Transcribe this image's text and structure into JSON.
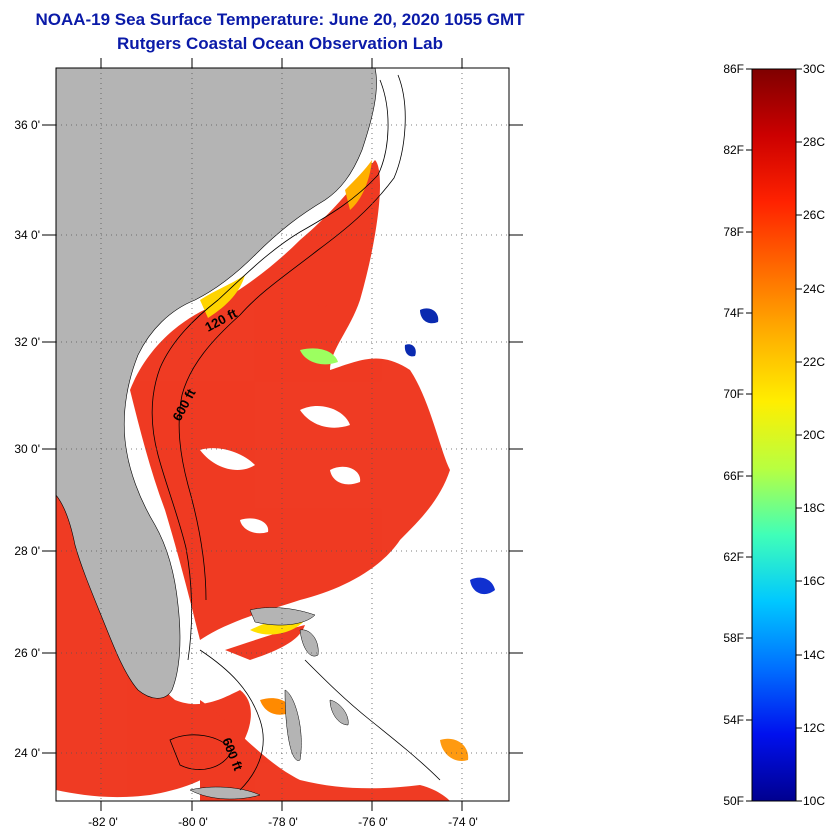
{
  "title": "NOAA-19 Sea Surface Temperature:  June 20, 2020 1055 GMT",
  "subtitle": "Rutgers Coastal Ocean Observation Lab",
  "map": {
    "lat_ticks": [
      "36 0'",
      "34 0'",
      "32 0'",
      "30 0'",
      "28 0'",
      "26 0'",
      "24 0'"
    ],
    "lon_ticks": [
      "-82 0'",
      "-80 0'",
      "-78 0'",
      "-76 0'",
      "-74 0'"
    ],
    "contour_labels": [
      "120 ft",
      "600 ft",
      "600 ft"
    ],
    "colors": {
      "land": "#b4b4b4",
      "no_data": "#ffffff",
      "warm_water": "#ee2a10"
    }
  },
  "colorbar": {
    "fahrenheit_labels": [
      "86F",
      "82F",
      "78F",
      "74F",
      "70F",
      "66F",
      "62F",
      "58F",
      "54F",
      "50F"
    ],
    "celsius_labels": [
      "30C",
      "28C",
      "26C",
      "24C",
      "22C",
      "20C",
      "18C",
      "16C",
      "14C",
      "12C",
      "10C"
    ],
    "gradient_colors": [
      "#7f0000",
      "#cc0000",
      "#ff2200",
      "#ff6a00",
      "#ffb000",
      "#ffee00",
      "#b8ff40",
      "#40ffb8",
      "#00c8ff",
      "#0070ff",
      "#0010ee",
      "#00008f"
    ]
  }
}
